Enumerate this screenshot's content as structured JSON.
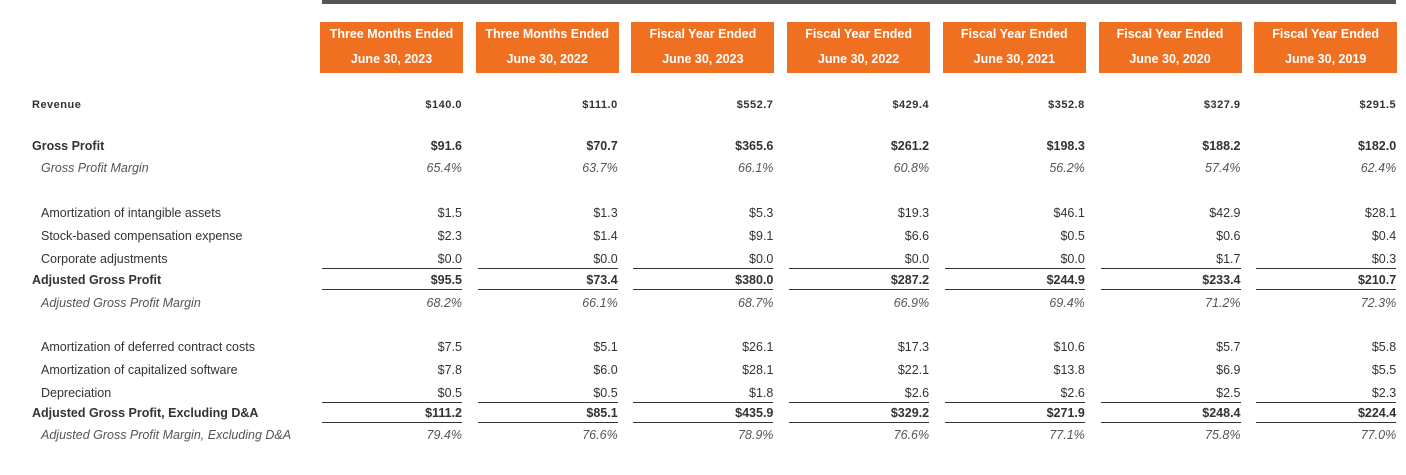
{
  "header": {
    "columns": [
      {
        "line1": "Three Months Ended",
        "line2": "June 30, 2023"
      },
      {
        "line1": "Three Months Ended",
        "line2": "June 30, 2022"
      },
      {
        "line1": "Fiscal Year Ended",
        "line2": "June 30, 2023"
      },
      {
        "line1": "Fiscal Year Ended",
        "line2": "June 30, 2022"
      },
      {
        "line1": "Fiscal Year Ended",
        "line2": "June 30, 2021"
      },
      {
        "line1": "Fiscal Year Ended",
        "line2": "June 30, 2020"
      },
      {
        "line1": "Fiscal Year Ended",
        "line2": "June 30, 2019"
      }
    ]
  },
  "table": {
    "rows": [
      {
        "label": "Revenue",
        "values": [
          "$140.0",
          "$111.0",
          "$552.7",
          "$429.4",
          "$352.8",
          "$327.9",
          "$291.5"
        ]
      },
      {
        "label": "Gross Profit",
        "values": [
          "$91.6",
          "$70.7",
          "$365.6",
          "$261.2",
          "$198.3",
          "$188.2",
          "$182.0"
        ]
      },
      {
        "label": "Gross Profit Margin",
        "values": [
          "65.4%",
          "63.7%",
          "66.1%",
          "60.8%",
          "56.2%",
          "57.4%",
          "62.4%"
        ]
      },
      {
        "label": "Amortization of intangible assets",
        "values": [
          "$1.5",
          "$1.3",
          "$5.3",
          "$19.3",
          "$46.1",
          "$42.9",
          "$28.1"
        ]
      },
      {
        "label": "Stock-based compensation expense",
        "values": [
          "$2.3",
          "$1.4",
          "$9.1",
          "$6.6",
          "$0.5",
          "$0.6",
          "$0.4"
        ]
      },
      {
        "label": "Corporate adjustments",
        "values": [
          "$0.0",
          "$0.0",
          "$0.0",
          "$0.0",
          "$0.0",
          "$1.7",
          "$0.3"
        ]
      },
      {
        "label": "Adjusted Gross Profit",
        "values": [
          "$95.5",
          "$73.4",
          "$380.0",
          "$287.2",
          "$244.9",
          "$233.4",
          "$210.7"
        ]
      },
      {
        "label": "Adjusted Gross Profit Margin",
        "values": [
          "68.2%",
          "66.1%",
          "68.7%",
          "66.9%",
          "69.4%",
          "71.2%",
          "72.3%"
        ]
      },
      {
        "label": "Amortization of deferred contract costs",
        "values": [
          "$7.5",
          "$5.1",
          "$26.1",
          "$17.3",
          "$10.6",
          "$5.7",
          "$5.8"
        ]
      },
      {
        "label": "Amortization of capitalized software",
        "values": [
          "$7.8",
          "$6.0",
          "$28.1",
          "$22.1",
          "$13.8",
          "$6.9",
          "$5.5"
        ]
      },
      {
        "label": "Depreciation",
        "values": [
          "$0.5",
          "$0.5",
          "$1.8",
          "$2.6",
          "$2.6",
          "$2.5",
          "$2.3"
        ]
      },
      {
        "label": "Adjusted Gross Profit, Excluding D&A",
        "values": [
          "$111.2",
          "$85.1",
          "$435.9",
          "$329.2",
          "$271.9",
          "$248.4",
          "$224.4"
        ]
      },
      {
        "label": "Adjusted Gross Profit Margin, Excluding D&A",
        "values": [
          "79.4%",
          "76.6%",
          "78.9%",
          "76.6%",
          "77.1%",
          "75.8%",
          "77.0%"
        ]
      }
    ]
  }
}
